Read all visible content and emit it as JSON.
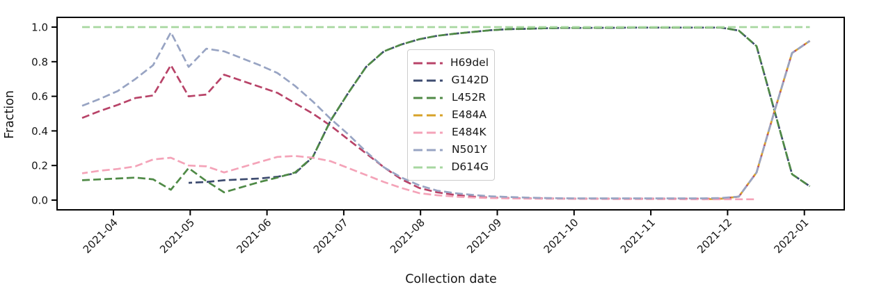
{
  "figure": {
    "title": ""
  },
  "chart_data": {
    "type": "line",
    "title": "",
    "xlabel": "Collection date",
    "ylabel": "Fraction",
    "line_style": "dashed",
    "grid": false,
    "legend_position": "upper center",
    "ylim": [
      -0.05,
      1.05
    ],
    "y_ticks": [
      1.0,
      0.8,
      0.6,
      0.4,
      0.2,
      0.0
    ],
    "y_tick_labels": [
      "1.0",
      "0.8",
      "0.6",
      "0.4",
      "0.2",
      "0.0"
    ],
    "x_tick_labels": [
      "2021-04",
      "2021-05",
      "2021-06",
      "2021-07",
      "2021-08",
      "2021-09",
      "2021-10",
      "2021-11",
      "2021-12",
      "2022-01"
    ],
    "dates": [
      "2021-03-18",
      "2021-03-25",
      "2021-04-01",
      "2021-04-08",
      "2021-04-15",
      "2021-04-22",
      "2021-04-29",
      "2021-05-06",
      "2021-05-13",
      "2021-05-20",
      "2021-05-27",
      "2021-06-03",
      "2021-06-10",
      "2021-06-17",
      "2021-06-24",
      "2021-07-01",
      "2021-07-08",
      "2021-07-15",
      "2021-07-22",
      "2021-07-29",
      "2021-08-05",
      "2021-08-12",
      "2021-08-19",
      "2021-08-26",
      "2021-09-02",
      "2021-09-09",
      "2021-09-16",
      "2021-09-23",
      "2021-09-30",
      "2021-10-07",
      "2021-10-14",
      "2021-10-21",
      "2021-10-28",
      "2021-11-04",
      "2021-11-11",
      "2021-11-18",
      "2021-11-25",
      "2021-12-02",
      "2021-12-09",
      "2021-12-16",
      "2021-12-23",
      "2021-12-30"
    ],
    "series": [
      {
        "name": "H69del",
        "color": "#b84368",
        "values": [
          0.475,
          0.515,
          0.55,
          0.59,
          0.605,
          0.78,
          0.6,
          0.61,
          0.725,
          0.69,
          0.655,
          0.62,
          0.56,
          0.5,
          0.43,
          0.35,
          0.27,
          0.19,
          0.12,
          0.07,
          0.045,
          0.03,
          0.02,
          0.015,
          0.012,
          0.01,
          0.01,
          0.009,
          0.008,
          0.008,
          0.008,
          0.008,
          0.008,
          0.008,
          0.008,
          0.008,
          0.009,
          0.02,
          0.16,
          0.51,
          0.85,
          0.92
        ]
      },
      {
        "name": "G142D",
        "color": "#3e4c70",
        "values": [
          null,
          null,
          null,
          null,
          null,
          null,
          0.1,
          0.105,
          0.115,
          0.12,
          0.125,
          0.135,
          0.155,
          0.25,
          0.46,
          0.62,
          0.77,
          0.86,
          0.9,
          0.93,
          0.95,
          0.962,
          0.972,
          0.982,
          0.988,
          0.99,
          0.993,
          0.995,
          0.995,
          0.996,
          0.996,
          0.997,
          0.997,
          0.997,
          0.997,
          0.997,
          0.997,
          0.98,
          0.89,
          0.52,
          0.15,
          0.08
        ]
      },
      {
        "name": "L452R",
        "color": "#4f8a46",
        "values": [
          0.115,
          0.12,
          0.125,
          0.13,
          0.12,
          0.06,
          0.185,
          0.11,
          0.045,
          0.075,
          0.105,
          0.13,
          0.16,
          0.25,
          0.46,
          0.62,
          0.77,
          0.86,
          0.9,
          0.93,
          0.95,
          0.962,
          0.972,
          0.982,
          0.988,
          0.99,
          0.993,
          0.995,
          0.995,
          0.996,
          0.996,
          0.997,
          0.997,
          0.997,
          0.997,
          0.997,
          0.997,
          0.98,
          0.89,
          0.52,
          0.15,
          0.08
        ]
      },
      {
        "name": "E484A",
        "color": "#d7a228",
        "values": [
          null,
          null,
          null,
          null,
          null,
          null,
          null,
          null,
          null,
          null,
          null,
          null,
          null,
          null,
          null,
          null,
          null,
          null,
          null,
          null,
          null,
          null,
          null,
          null,
          null,
          null,
          null,
          null,
          null,
          null,
          null,
          null,
          null,
          null,
          null,
          0.005,
          0.008,
          0.02,
          0.16,
          0.51,
          0.85,
          0.92
        ]
      },
      {
        "name": "E484K",
        "color": "#f4a3b8",
        "values": [
          0.155,
          0.17,
          0.18,
          0.195,
          0.235,
          0.245,
          0.2,
          0.195,
          0.16,
          0.19,
          0.22,
          0.25,
          0.255,
          0.245,
          0.225,
          0.185,
          0.145,
          0.105,
          0.07,
          0.04,
          0.028,
          0.02,
          0.015,
          0.012,
          0.01,
          0.009,
          0.008,
          0.008,
          0.007,
          0.007,
          0.006,
          0.006,
          0.006,
          0.006,
          0.005,
          0.005,
          0.005,
          0.005,
          0.005,
          null,
          null,
          null
        ]
      },
      {
        "name": "N501Y",
        "color": "#98a4c3",
        "values": [
          0.545,
          0.585,
          0.63,
          0.7,
          0.78,
          0.97,
          0.77,
          0.875,
          0.86,
          0.82,
          0.78,
          0.735,
          0.66,
          0.57,
          0.47,
          0.38,
          0.28,
          0.19,
          0.13,
          0.085,
          0.055,
          0.04,
          0.03,
          0.022,
          0.018,
          0.015,
          0.012,
          0.011,
          0.01,
          0.01,
          0.01,
          0.01,
          0.01,
          0.01,
          0.01,
          0.01,
          0.012,
          0.02,
          0.16,
          0.51,
          0.85,
          0.92
        ]
      },
      {
        "name": "D614G",
        "color": "#a7d7a0",
        "values": [
          1.0,
          1.0,
          1.0,
          1.0,
          1.0,
          1.0,
          1.0,
          1.0,
          1.0,
          1.0,
          1.0,
          1.0,
          1.0,
          1.0,
          1.0,
          1.0,
          1.0,
          1.0,
          1.0,
          1.0,
          1.0,
          1.0,
          1.0,
          1.0,
          1.0,
          1.0,
          1.0,
          1.0,
          1.0,
          1.0,
          1.0,
          1.0,
          1.0,
          1.0,
          1.0,
          1.0,
          1.0,
          1.0,
          1.0,
          1.0,
          1.0,
          1.0
        ]
      }
    ]
  }
}
